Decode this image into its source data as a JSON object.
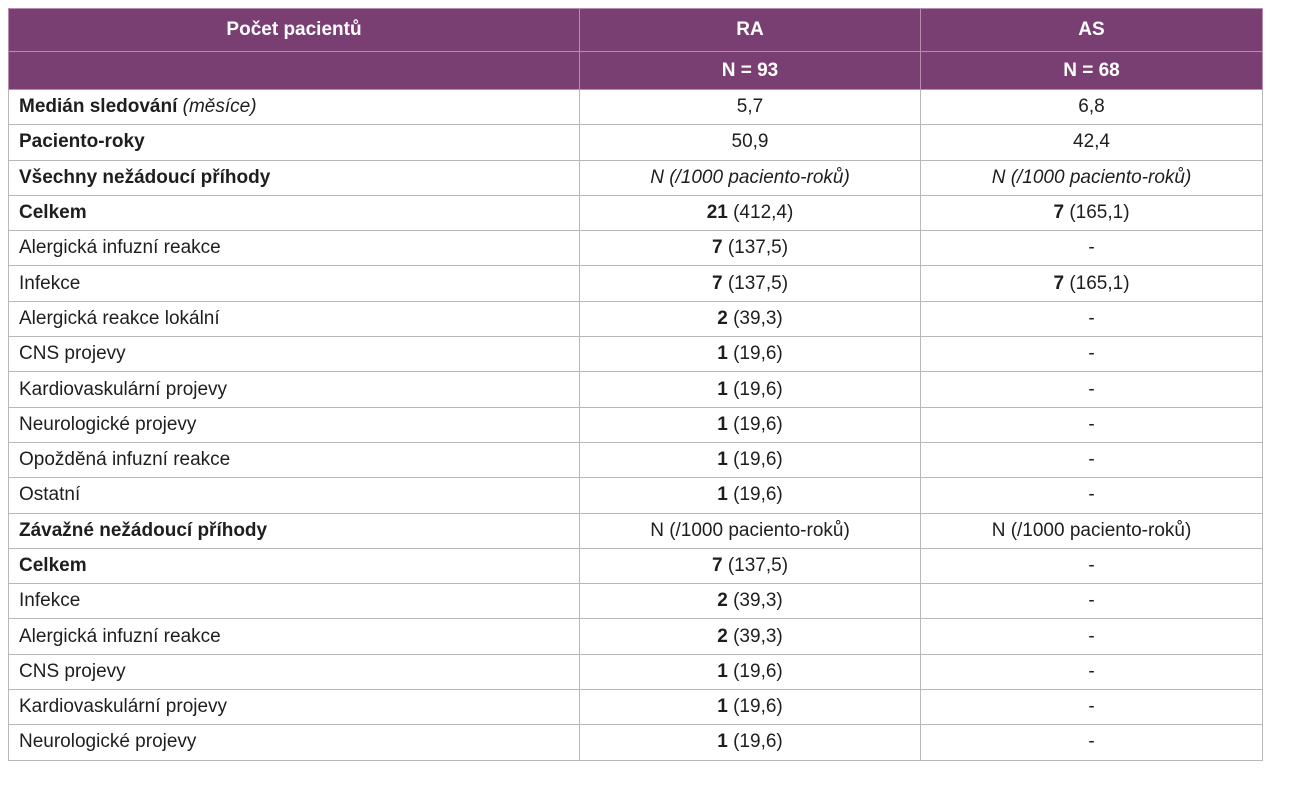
{
  "header": {
    "col1": "Počet pacientů",
    "col2": "RA",
    "col3": "AS",
    "col2_n": "N = 93",
    "col3_n": "N = 68"
  },
  "rows": [
    {
      "label": "Medián sledování",
      "label_extra": " (měsíce)",
      "label_bold": true,
      "label_extra_italic": true,
      "ra_bold": "",
      "ra_rest": "5,7",
      "as_bold": "",
      "as_rest": "6,8",
      "italic_vals": false
    },
    {
      "label": "Paciento-roky",
      "label_extra": "",
      "label_bold": true,
      "label_extra_italic": false,
      "ra_bold": "",
      "ra_rest": "50,9",
      "as_bold": "",
      "as_rest": "42,4",
      "italic_vals": false
    },
    {
      "label": "Všechny nežádoucí příhody",
      "label_extra": "",
      "label_bold": true,
      "label_extra_italic": false,
      "ra_bold": "",
      "ra_rest": "N (/1000 paciento-roků)",
      "as_bold": "",
      "as_rest": "N (/1000 paciento-roků)",
      "italic_vals": true
    },
    {
      "label": "Celkem",
      "label_extra": "",
      "label_bold": true,
      "label_extra_italic": false,
      "ra_bold": "21",
      "ra_rest": " (412,4)",
      "as_bold": "7",
      "as_rest": " (165,1)",
      "italic_vals": false
    },
    {
      "label": "Alergická infuzní reakce",
      "label_extra": "",
      "label_bold": false,
      "label_extra_italic": false,
      "ra_bold": "7",
      "ra_rest": " (137,5)",
      "as_bold": "",
      "as_rest": "-",
      "italic_vals": false
    },
    {
      "label": "Infekce",
      "label_extra": "",
      "label_bold": false,
      "label_extra_italic": false,
      "ra_bold": "7",
      "ra_rest": " (137,5)",
      "as_bold": "7",
      "as_rest": " (165,1)",
      "italic_vals": false
    },
    {
      "label": "Alergická reakce lokální",
      "label_extra": "",
      "label_bold": false,
      "label_extra_italic": false,
      "ra_bold": "2",
      "ra_rest": " (39,3)",
      "as_bold": "",
      "as_rest": "-",
      "italic_vals": false
    },
    {
      "label": "CNS projevy",
      "label_extra": "",
      "label_bold": false,
      "label_extra_italic": false,
      "ra_bold": "1",
      "ra_rest": " (19,6)",
      "as_bold": "",
      "as_rest": "-",
      "italic_vals": false
    },
    {
      "label": "Kardiovaskulární projevy",
      "label_extra": "",
      "label_bold": false,
      "label_extra_italic": false,
      "ra_bold": "1",
      "ra_rest": " (19,6)",
      "as_bold": "",
      "as_rest": "-",
      "italic_vals": false
    },
    {
      "label": "Neurologické projevy",
      "label_extra": "",
      "label_bold": false,
      "label_extra_italic": false,
      "ra_bold": "1",
      "ra_rest": " (19,6)",
      "as_bold": "",
      "as_rest": "-",
      "italic_vals": false
    },
    {
      "label": "Opožděná infuzní reakce",
      "label_extra": "",
      "label_bold": false,
      "label_extra_italic": false,
      "ra_bold": "1",
      "ra_rest": " (19,6)",
      "as_bold": "",
      "as_rest": "-",
      "italic_vals": false
    },
    {
      "label": "Ostatní",
      "label_extra": "",
      "label_bold": false,
      "label_extra_italic": false,
      "ra_bold": "1",
      "ra_rest": " (19,6)",
      "as_bold": "",
      "as_rest": "-",
      "italic_vals": false
    },
    {
      "label": "Závažné nežádoucí příhody",
      "label_extra": "",
      "label_bold": true,
      "label_extra_italic": false,
      "ra_bold": "",
      "ra_rest": "N (/1000 paciento-roků)",
      "as_bold": "",
      "as_rest": "N (/1000 paciento-roků)",
      "italic_vals": false
    },
    {
      "label": "Celkem",
      "label_extra": "",
      "label_bold": true,
      "label_extra_italic": false,
      "ra_bold": "7",
      "ra_rest": " (137,5)",
      "as_bold": "",
      "as_rest": "-",
      "italic_vals": false
    },
    {
      "label": "Infekce",
      "label_extra": "",
      "label_bold": false,
      "label_extra_italic": false,
      "ra_bold": "2",
      "ra_rest": " (39,3)",
      "as_bold": "",
      "as_rest": "-",
      "italic_vals": false
    },
    {
      "label": "Alergická infuzní reakce",
      "label_extra": "",
      "label_bold": false,
      "label_extra_italic": false,
      "ra_bold": "2",
      "ra_rest": " (39,3)",
      "as_bold": "",
      "as_rest": "-",
      "italic_vals": false
    },
    {
      "label": "CNS projevy",
      "label_extra": "",
      "label_bold": false,
      "label_extra_italic": false,
      "ra_bold": "1",
      "ra_rest": " (19,6)",
      "as_bold": "",
      "as_rest": "-",
      "italic_vals": false
    },
    {
      "label": "Kardiovaskulární projevy",
      "label_extra": "",
      "label_bold": false,
      "label_extra_italic": false,
      "ra_bold": "1",
      "ra_rest": " (19,6)",
      "as_bold": "",
      "as_rest": "-",
      "italic_vals": false
    },
    {
      "label": "Neurologické projevy",
      "label_extra": "",
      "label_bold": false,
      "label_extra_italic": false,
      "ra_bold": "1",
      "ra_rest": " (19,6)",
      "as_bold": "",
      "as_rest": "-",
      "italic_vals": false
    }
  ],
  "colors": {
    "header_bg": "#7a3f72",
    "header_text": "#ffffff",
    "grid": "#b8b8b8"
  }
}
